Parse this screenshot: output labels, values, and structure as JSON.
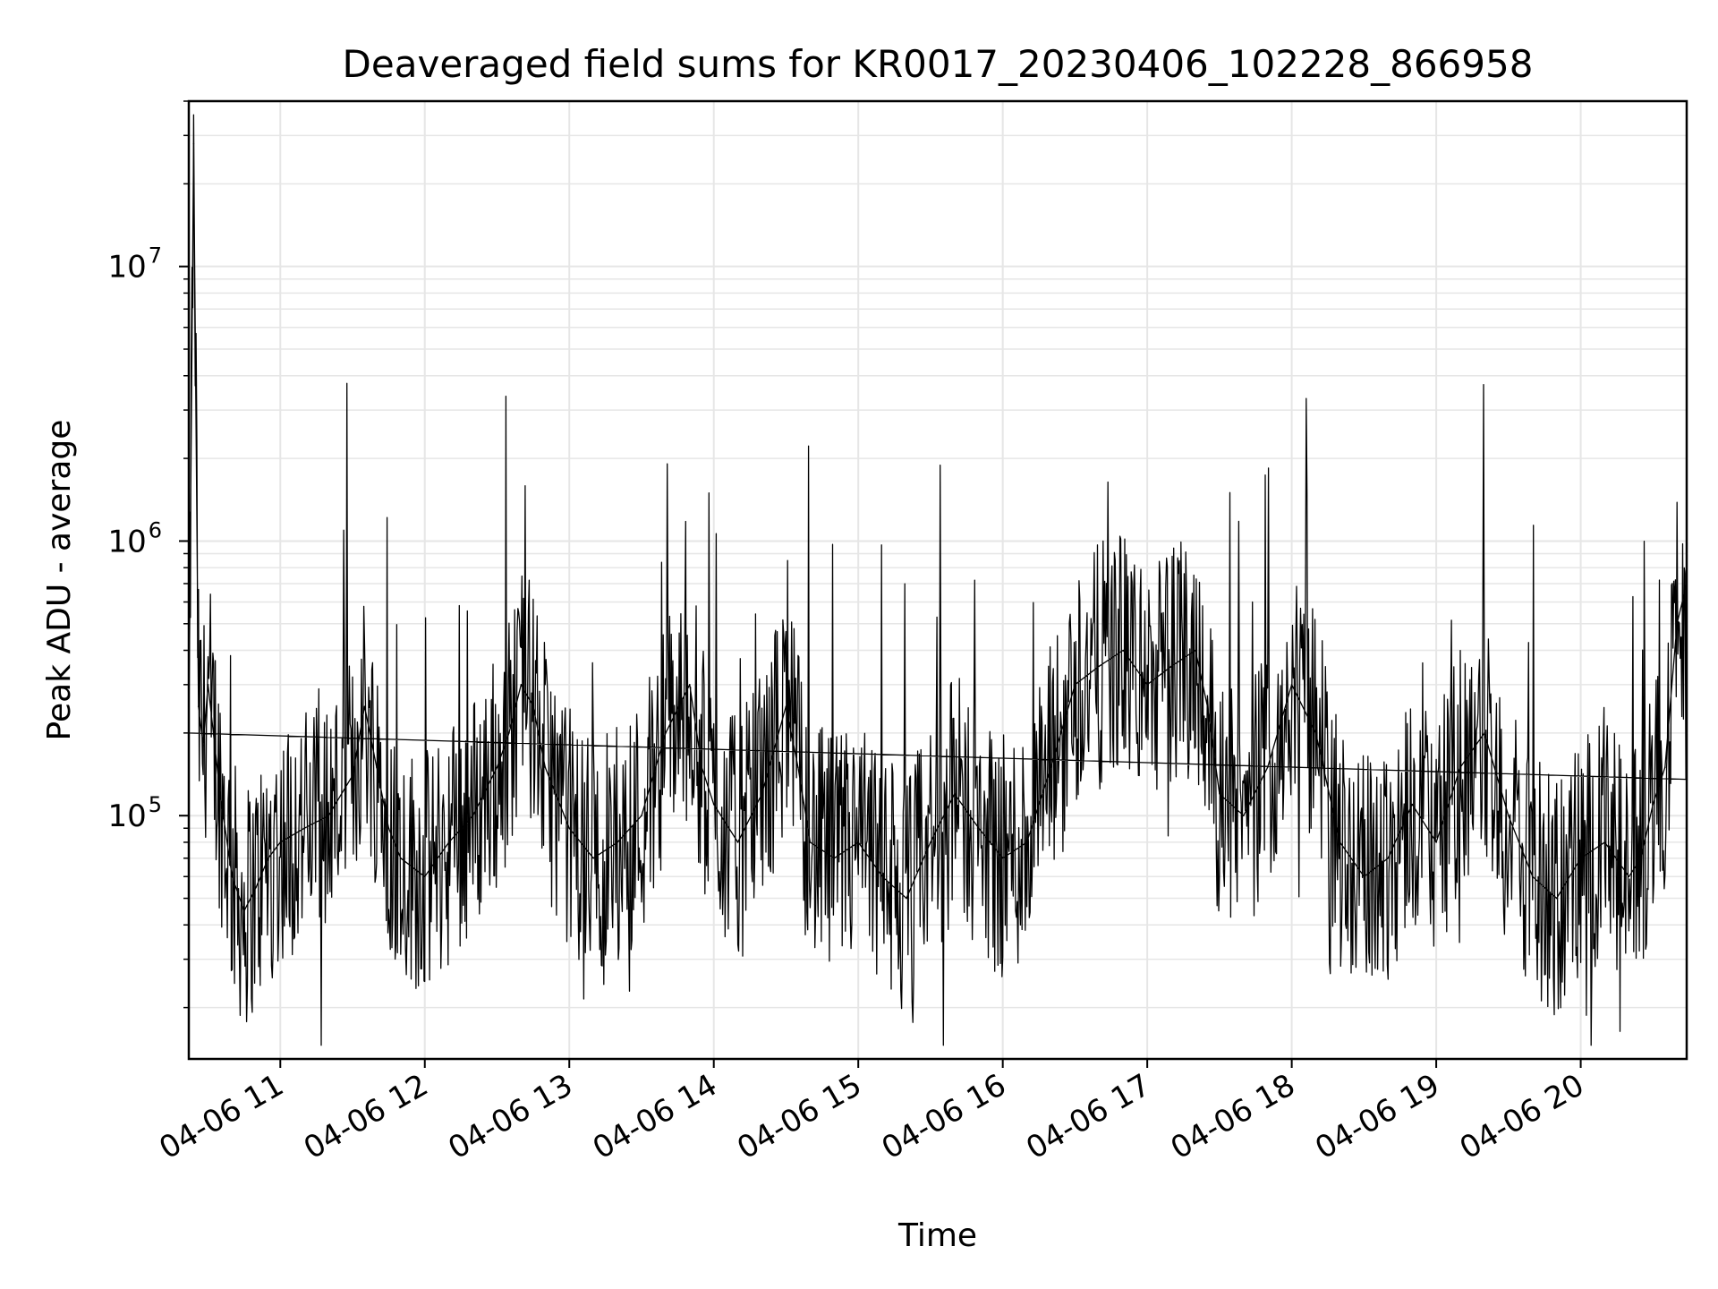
{
  "chart_data": {
    "type": "line",
    "title": "Deaveraged field sums for KR0017_20230406_102228_866958",
    "xlabel": "Time",
    "ylabel": "Peak ADU - average",
    "yscale": "log",
    "xlim": [
      "2023-04-06 10:22",
      "2023-04-06 20:44"
    ],
    "ylim": [
      13000,
      40000000
    ],
    "grid": true,
    "line_color": "#000000",
    "grid_color": "#e6e6e6",
    "x_ticks": [
      {
        "value": "2023-04-06 11:00",
        "label": "04-06 11"
      },
      {
        "value": "2023-04-06 12:00",
        "label": "04-06 12"
      },
      {
        "value": "2023-04-06 13:00",
        "label": "04-06 13"
      },
      {
        "value": "2023-04-06 14:00",
        "label": "04-06 14"
      },
      {
        "value": "2023-04-06 15:00",
        "label": "04-06 15"
      },
      {
        "value": "2023-04-06 16:00",
        "label": "04-06 16"
      },
      {
        "value": "2023-04-06 17:00",
        "label": "04-06 17"
      },
      {
        "value": "2023-04-06 18:00",
        "label": "04-06 18"
      },
      {
        "value": "2023-04-06 19:00",
        "label": "04-06 19"
      },
      {
        "value": "2023-04-06 20:00",
        "label": "04-06 20"
      }
    ],
    "y_ticks": [
      {
        "value": 100000,
        "base": "10",
        "exponent": "5"
      },
      {
        "value": 1000000,
        "base": "10",
        "exponent": "6"
      },
      {
        "value": 10000000,
        "base": "10",
        "exponent": "7"
      }
    ],
    "series": [
      {
        "x": [
          "2023-04-06 10:22",
          "2023-04-06 10:24",
          "2023-04-06 10:26",
          "2023-04-06 10:28",
          "2023-04-06 10:30",
          "2023-04-06 10:35",
          "2023-04-06 10:40",
          "2023-04-06 10:45",
          "2023-04-06 10:50",
          "2023-04-06 10:55",
          "2023-04-06 11:00",
          "2023-04-06 11:10",
          "2023-04-06 11:20",
          "2023-04-06 11:30",
          "2023-04-06 11:35",
          "2023-04-06 11:40",
          "2023-04-06 11:45",
          "2023-04-06 11:50",
          "2023-04-06 12:00",
          "2023-04-06 12:10",
          "2023-04-06 12:20",
          "2023-04-06 12:30",
          "2023-04-06 12:35",
          "2023-04-06 12:40",
          "2023-04-06 12:45",
          "2023-04-06 12:50",
          "2023-04-06 13:00",
          "2023-04-06 13:10",
          "2023-04-06 13:20",
          "2023-04-06 13:30",
          "2023-04-06 13:40",
          "2023-04-06 13:50",
          "2023-04-06 13:55",
          "2023-04-06 14:00",
          "2023-04-06 14:10",
          "2023-04-06 14:20",
          "2023-04-06 14:30",
          "2023-04-06 14:35",
          "2023-04-06 14:40",
          "2023-04-06 14:50",
          "2023-04-06 15:00",
          "2023-04-06 15:10",
          "2023-04-06 15:20",
          "2023-04-06 15:30",
          "2023-04-06 15:40",
          "2023-04-06 15:50",
          "2023-04-06 16:00",
          "2023-04-06 16:10",
          "2023-04-06 16:20",
          "2023-04-06 16:30",
          "2023-04-06 16:40",
          "2023-04-06 16:50",
          "2023-04-06 17:00",
          "2023-04-06 17:10",
          "2023-04-06 17:20",
          "2023-04-06 17:25",
          "2023-04-06 17:30",
          "2023-04-06 17:40",
          "2023-04-06 17:50",
          "2023-04-06 18:00",
          "2023-04-06 18:10",
          "2023-04-06 18:20",
          "2023-04-06 18:30",
          "2023-04-06 18:40",
          "2023-04-06 18:50",
          "2023-04-06 19:00",
          "2023-04-06 19:10",
          "2023-04-06 19:20",
          "2023-04-06 19:30",
          "2023-04-06 19:40",
          "2023-04-06 19:50",
          "2023-04-06 20:00",
          "2023-04-06 20:10",
          "2023-04-06 20:20",
          "2023-04-06 20:25",
          "2023-04-06 20:30",
          "2023-04-06 20:35",
          "2023-04-06 20:40",
          "2023-04-06 20:44"
        ],
        "y": [
          200000,
          28000000,
          250000,
          180000,
          300000,
          120000,
          60000,
          45000,
          55000,
          70000,
          80000,
          90000,
          100000,
          140000,
          250000,
          150000,
          90000,
          70000,
          60000,
          80000,
          100000,
          150000,
          200000,
          300000,
          250000,
          150000,
          90000,
          70000,
          80000,
          100000,
          200000,
          300000,
          150000,
          110000,
          80000,
          120000,
          250000,
          150000,
          80000,
          70000,
          80000,
          60000,
          50000,
          80000,
          120000,
          90000,
          70000,
          80000,
          150000,
          300000,
          350000,
          400000,
          300000,
          350000,
          400000,
          250000,
          120000,
          100000,
          150000,
          300000,
          200000,
          80000,
          60000,
          70000,
          110000,
          80000,
          150000,
          200000,
          100000,
          60000,
          50000,
          70000,
          80000,
          60000,
          70000,
          110000,
          150000,
          500000,
          700000
        ]
      }
    ]
  }
}
